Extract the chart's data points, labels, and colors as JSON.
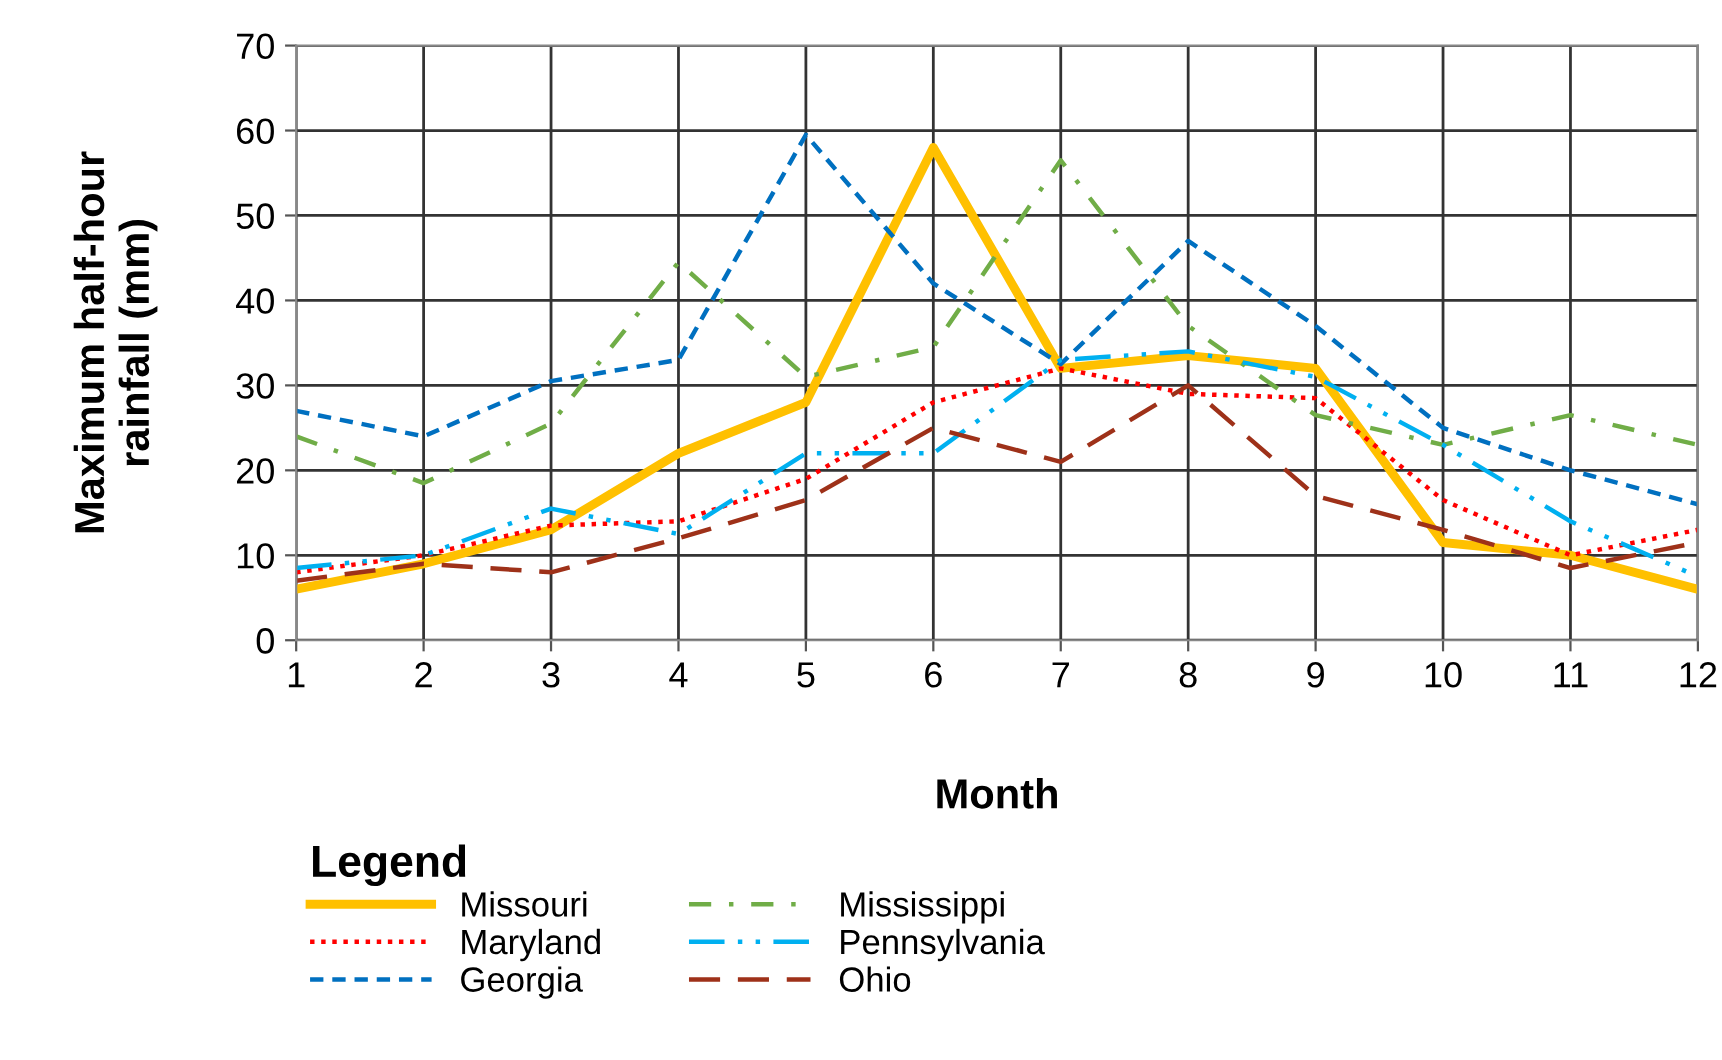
{
  "chart_data": {
    "type": "line",
    "xlabel": "Month",
    "ylabel": "Maximum half-hour\nrainfall (mm)",
    "legend_title": "Legend",
    "legend": "bottom left",
    "grid": true,
    "x": [
      1,
      2,
      3,
      4,
      5,
      6,
      7,
      8,
      9,
      10,
      11,
      12
    ],
    "xlim": [
      1,
      12
    ],
    "xticks": [
      1,
      2,
      3,
      4,
      5,
      6,
      7,
      8,
      9,
      10,
      11,
      12
    ],
    "ylim": [
      0,
      70
    ],
    "yticks": [
      0,
      10,
      20,
      30,
      40,
      50,
      60,
      70
    ],
    "series": [
      {
        "name": "Missouri",
        "color": "#ffc000",
        "line_style": "solid",
        "values": [
          6,
          9,
          13,
          22,
          28,
          58,
          32,
          33.5,
          32,
          11.5,
          10,
          6
        ]
      },
      {
        "name": "Maryland",
        "color": "#ff0000",
        "line_style": "dotted",
        "values": [
          8,
          10,
          13.5,
          14,
          19,
          28,
          32,
          29,
          28.5,
          16.5,
          10,
          13
        ]
      },
      {
        "name": "Georgia",
        "color": "#0070c0",
        "line_style": "dashed",
        "values": [
          27,
          24,
          30.5,
          33,
          59.5,
          42,
          32.5,
          47,
          37,
          25,
          20,
          16
        ]
      },
      {
        "name": "Mississippi",
        "color": "#70ad47",
        "line_style": "dashdot",
        "values": [
          24,
          18.5,
          25.5,
          44.5,
          31,
          34.5,
          56.5,
          37,
          26.5,
          23,
          26.5,
          23
        ]
      },
      {
        "name": "Pennsylvania",
        "color": "#00b0f0",
        "line_style": "longdashdotdot",
        "values": [
          8.5,
          10,
          15.5,
          12.5,
          22,
          22,
          33,
          34,
          31,
          23,
          14,
          7.5
        ]
      },
      {
        "name": "Ohio",
        "color": "#9e3119",
        "line_style": "longdash",
        "values": [
          7,
          9,
          8,
          12,
          16.5,
          25,
          21,
          30,
          17,
          13,
          8.5,
          11.5
        ]
      }
    ]
  }
}
